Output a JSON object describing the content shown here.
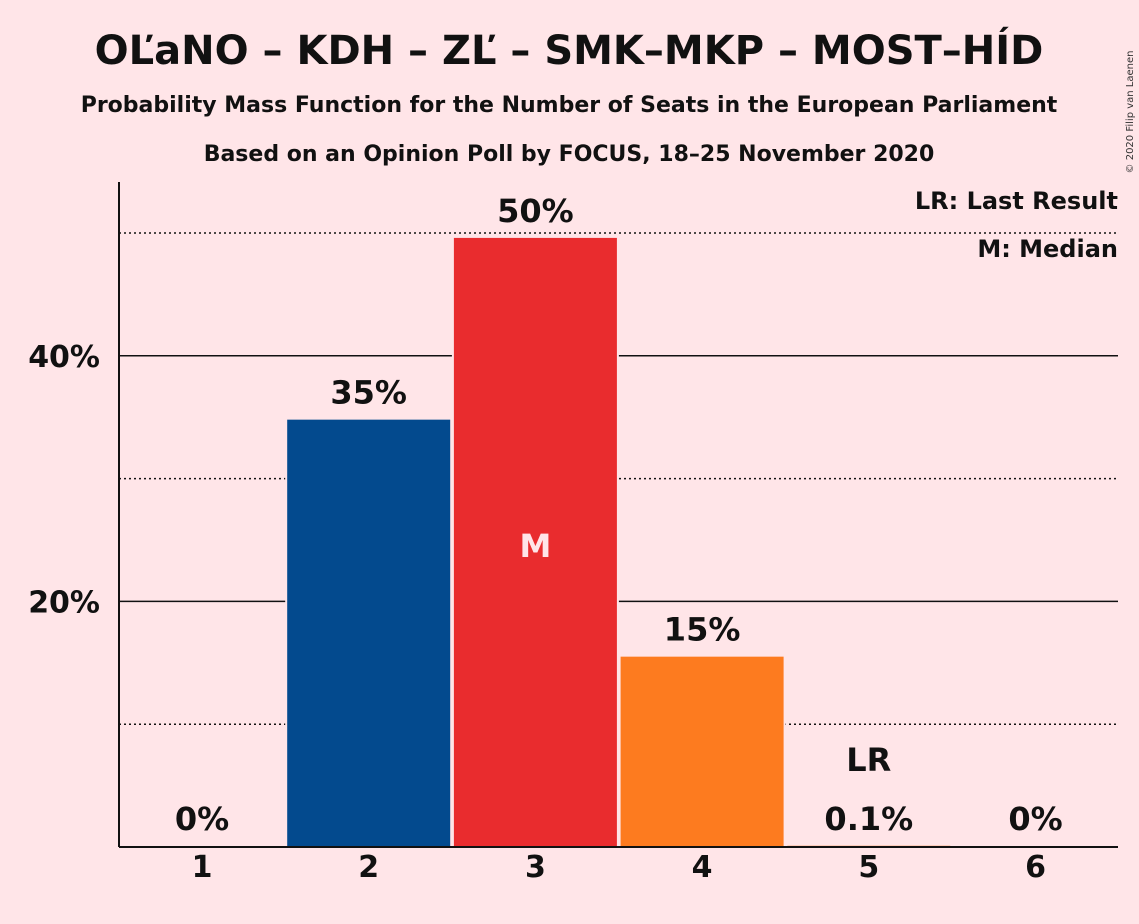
{
  "chart_data": {
    "type": "bar",
    "title": "OĽaNO – KDH – ZĽ – SMK–MKP – MOST–HÍD",
    "subtitle": "Probability Mass Function for the Number of Seats in the European Parliament",
    "subtitle2": "Based on an Opinion Poll by FOCUS, 18–25 November 2020",
    "copyright": "© 2020 Filip van Laenen",
    "categories": [
      "1",
      "2",
      "3",
      "4",
      "5",
      "6"
    ],
    "values": [
      0,
      34.8,
      49.6,
      15.5,
      0.1,
      0
    ],
    "data_labels": [
      "0%",
      "35%",
      "50%",
      "15%",
      "0.1%",
      "0%"
    ],
    "bar_colors": [
      "#034A8E",
      "#034A8E",
      "#E92C2E",
      "#FD7B1F",
      "#FD7B1F",
      "#FD7B1F"
    ],
    "median_category": "3",
    "median_marker": "M",
    "last_result_category": "5",
    "last_result_marker": "LR",
    "legend": [
      "LR: Last Result",
      "M: Median"
    ],
    "ylim": [
      0,
      54
    ],
    "yticks": [
      {
        "value": 20,
        "label": "20%"
      },
      {
        "value": 40,
        "label": "40%"
      }
    ],
    "minor_gridlines": [
      10,
      30,
      50
    ],
    "grid": true,
    "legend_position": "top-right"
  }
}
